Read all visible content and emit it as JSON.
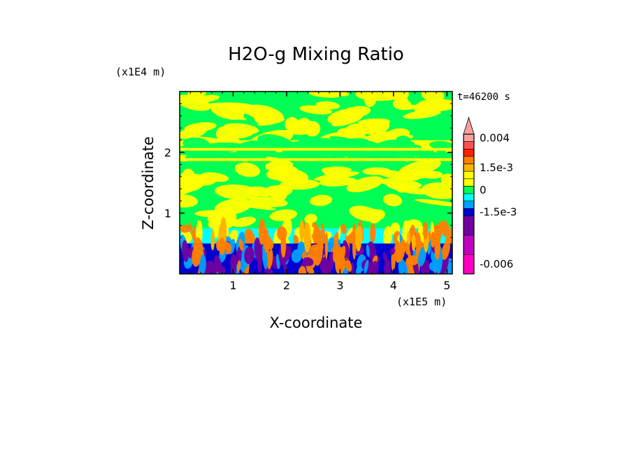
{
  "chart_data": {
    "type": "heatmap",
    "title": "H2O-g Mixing Ratio",
    "xlabel": "X-coordinate",
    "ylabel": "Z-coordinate",
    "x_units": "(x1E5 m)",
    "y_units": "(x1E4 m)",
    "time_label": "t=46200 s",
    "x_ticks": [
      "1",
      "2",
      "3",
      "4",
      "5"
    ],
    "x_tick_values": [
      1,
      2,
      3,
      4,
      5
    ],
    "y_ticks": [
      "1",
      "2"
    ],
    "y_tick_values": [
      1,
      2
    ],
    "xlim": [
      0,
      5.1
    ],
    "ylim": [
      0,
      3.0
    ],
    "colorbar": {
      "labels": [
        "0.004",
        "1.5e-3",
        "0",
        "-1.5e-3",
        "-0.006"
      ],
      "label_values": [
        0.004,
        0.0015,
        0,
        -0.0015,
        -0.006
      ],
      "levels": [
        {
          "value": 0.004,
          "color": "#f4a0a0"
        },
        {
          "value": 0.003,
          "color": "#ff5050"
        },
        {
          "value": 0.0025,
          "color": "#ff2000"
        },
        {
          "value": 0.002,
          "color": "#ff8000"
        },
        {
          "value": 0.0015,
          "color": "#ffb400"
        },
        {
          "value": 0.001,
          "color": "#ffff00"
        },
        {
          "value": 0.0005,
          "color": "#ffff00"
        },
        {
          "value": 0,
          "color": "#00ff55"
        },
        {
          "value": -0.0005,
          "color": "#00ffff"
        },
        {
          "value": -0.001,
          "color": "#00a0ff"
        },
        {
          "value": -0.0015,
          "color": "#0000d0"
        },
        {
          "value": -0.003,
          "color": "#7000a0"
        },
        {
          "value": -0.0045,
          "color": "#c000c0"
        },
        {
          "value": -0.006,
          "color": "#ff00c0"
        }
      ]
    },
    "regions": [
      {
        "z_range": [
          2.2,
          3.0
        ],
        "dominant": [
          "#00ff55",
          "#ffff00"
        ]
      },
      {
        "z_range": [
          1.85,
          2.2
        ],
        "dominant": [
          "#ffff00",
          "#00ff55"
        ]
      },
      {
        "z_range": [
          0.75,
          1.85
        ],
        "dominant": [
          "#00ff55",
          "#ffff00"
        ]
      },
      {
        "z_range": [
          0.5,
          0.75
        ],
        "dominant": [
          "#00ffff",
          "#ffff00",
          "#ff8000"
        ]
      },
      {
        "z_range": [
          0.0,
          0.5
        ],
        "dominant": [
          "#0000d0",
          "#7000a0",
          "#00a0ff",
          "#ff8000"
        ]
      }
    ]
  }
}
